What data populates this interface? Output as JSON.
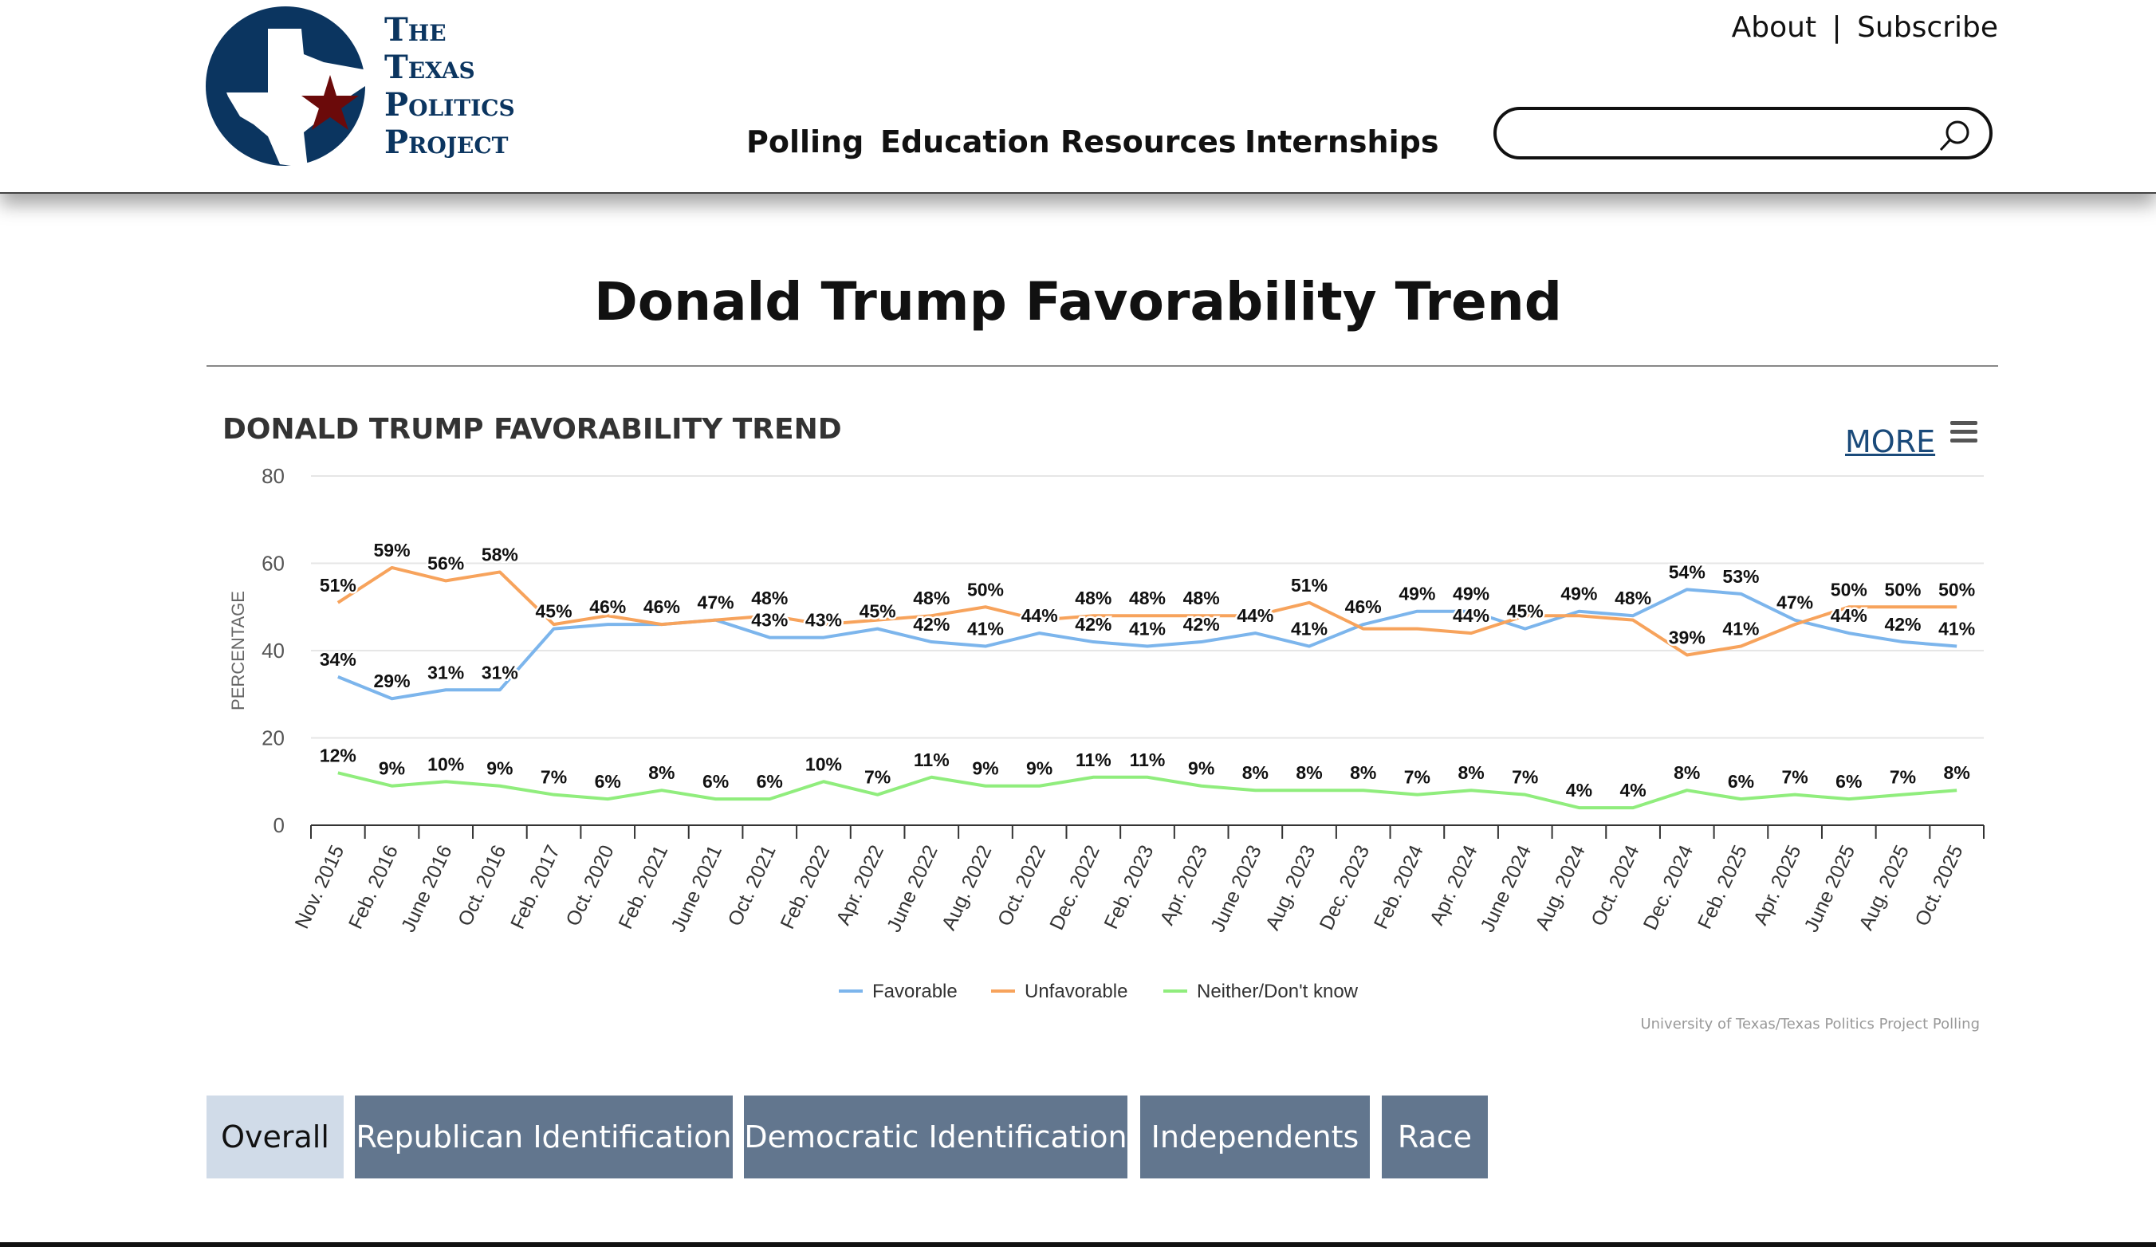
{
  "header": {
    "logo_text": [
      "The",
      "Texas",
      "Politics",
      "Project"
    ],
    "top_links": [
      "About",
      "Subscribe"
    ],
    "separator": "|",
    "nav": [
      "Polling",
      "Education",
      "Resources",
      "Internships"
    ],
    "search": {
      "value": "",
      "placeholder": ""
    }
  },
  "page_title": "Donald Trump Favorability Trend",
  "chart_header": {
    "more_label": "MORE"
  },
  "credits": "University of Texas/Texas Politics Project Polling",
  "tabs": [
    {
      "label": "Overall",
      "active": true
    },
    {
      "label": "Republican Identification",
      "active": false
    },
    {
      "label": "Democratic Identification",
      "active": false
    },
    {
      "label": "Independents",
      "active": false
    },
    {
      "label": "Race",
      "active": false
    }
  ],
  "chart_data": {
    "type": "line",
    "title": "DONALD TRUMP FAVORABILITY TREND",
    "xlabel": "",
    "ylabel": "PERCENTAGE",
    "ylim": [
      0,
      80
    ],
    "yticks": [
      0,
      20,
      40,
      60,
      80
    ],
    "grid": true,
    "legend_position": "bottom-center",
    "categories": [
      "Nov. 2015",
      "Feb. 2016",
      "June 2016",
      "Oct. 2016",
      "Feb. 2017",
      "Oct. 2020",
      "Feb. 2021",
      "June 2021",
      "Oct. 2021",
      "Feb. 2022",
      "Apr. 2022",
      "June 2022",
      "Aug. 2022",
      "Oct. 2022",
      "Dec. 2022",
      "Feb. 2023",
      "Apr. 2023",
      "June 2023",
      "Aug. 2023",
      "Dec. 2023",
      "Feb. 2024",
      "Apr. 2024",
      "June 2024",
      "Aug. 2024",
      "Oct. 2024",
      "Dec. 2024",
      "Feb. 2025",
      "Apr. 2025",
      "June 2025",
      "Aug. 2025",
      "Oct. 2025"
    ],
    "series": [
      {
        "name": "Favorable",
        "color": "#7cb5ec",
        "values": [
          34,
          29,
          31,
          31,
          45,
          46,
          46,
          47,
          43,
          43,
          45,
          42,
          41,
          44,
          42,
          41,
          42,
          44,
          41,
          46,
          49,
          49,
          45,
          49,
          48,
          54,
          53,
          47,
          44,
          42,
          41
        ],
        "hidden_labels": []
      },
      {
        "name": "Unfavorable",
        "color": "#f7a35c",
        "values": [
          51,
          59,
          56,
          58,
          46,
          48,
          46,
          47,
          48,
          46,
          47,
          48,
          50,
          47,
          48,
          48,
          48,
          48,
          51,
          45,
          45,
          44,
          48,
          48,
          47,
          39,
          41,
          46,
          50,
          50,
          50
        ],
        "hidden_labels": [
          4,
          5,
          6,
          7,
          9,
          10,
          13,
          17,
          19,
          20,
          22,
          23,
          24,
          27
        ]
      },
      {
        "name": "Neither/Don't know",
        "color": "#90ed7d",
        "values": [
          12,
          9,
          10,
          9,
          7,
          6,
          8,
          6,
          6,
          10,
          7,
          11,
          9,
          9,
          11,
          11,
          9,
          8,
          8,
          8,
          7,
          8,
          7,
          4,
          4,
          8,
          6,
          7,
          6,
          7,
          8
        ],
        "hidden_labels": []
      }
    ]
  }
}
